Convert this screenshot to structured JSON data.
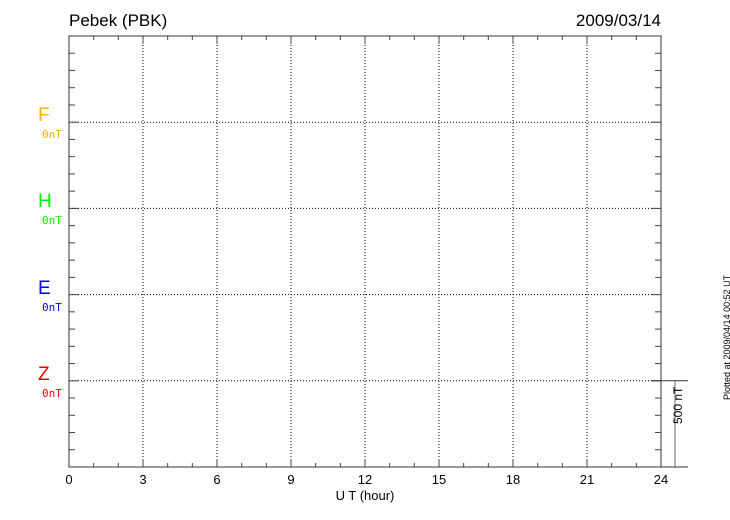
{
  "chart_data": {
    "type": "line",
    "title": "Pebek (PBK)",
    "date": "2009/03/14",
    "xlabel": "U T (hour)",
    "xlim": [
      0,
      24
    ],
    "xticks": [
      "0",
      "3",
      "6",
      "9",
      "12",
      "15",
      "18",
      "21",
      "24"
    ],
    "grid": true,
    "channels": [
      {
        "name": "F",
        "baseline": "0nT",
        "color": "#ffb000"
      },
      {
        "name": "H",
        "baseline": "0nT",
        "color": "#00ee00"
      },
      {
        "name": "E",
        "baseline": "0nT",
        "color": "#0000ff"
      },
      {
        "name": "Z",
        "baseline": "0nT",
        "color": "#ee0000"
      }
    ],
    "scale_bar": "500 nT",
    "series": [],
    "footer": "Plotted at 2009/04/14 00:52 UT"
  }
}
